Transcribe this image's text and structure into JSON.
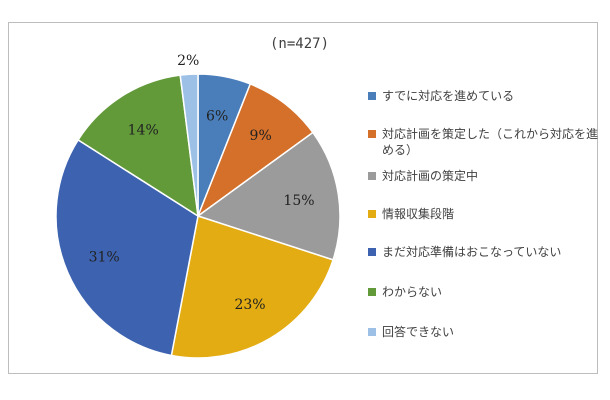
{
  "chart_data": {
    "type": "pie",
    "title": "(n=427)",
    "slices": [
      {
        "label": "すでに対応を進めている",
        "value": 6,
        "value_label": "6%",
        "color": "#4a7ebb"
      },
      {
        "label": "対応計画を策定した（これから対応を進める）",
        "value": 9,
        "value_label": "9%",
        "color": "#d4702a"
      },
      {
        "label": "対応計画の策定中",
        "value": 15,
        "value_label": "15%",
        "color": "#9b9b9b"
      },
      {
        "label": "情報収集段階",
        "value": 23,
        "value_label": "23%",
        "color": "#e3ac13"
      },
      {
        "label": "まだ対応準備はおこなっていない",
        "value": 31,
        "value_label": "31%",
        "color": "#3d63b0"
      },
      {
        "label": "わからない",
        "value": 14,
        "value_label": "14%",
        "color": "#629a3a"
      },
      {
        "label": "回答できない",
        "value": 2,
        "value_label": "2%",
        "color": "#9cc0e6"
      }
    ],
    "legend_position": "right"
  }
}
